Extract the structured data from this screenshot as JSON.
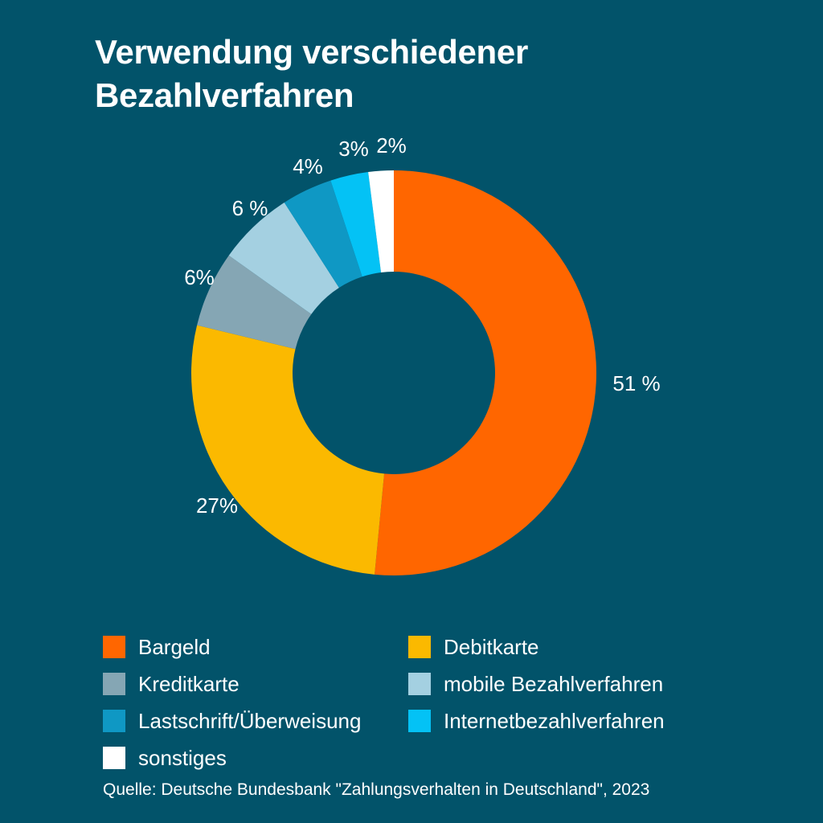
{
  "title": {
    "line1": "Verwendung verschiedener",
    "line2": "Bezahlverfahren"
  },
  "chart_data": {
    "type": "pie",
    "variant": "donut",
    "categories": [
      "Bargeld",
      "Debitkarte",
      "Kreditkarte",
      "mobile Bezahlverfahren",
      "Lastschrift/Überweisung",
      "Internetbezahlverfahren",
      "sonstiges"
    ],
    "values": [
      51,
      27,
      6,
      6,
      4,
      3,
      2
    ],
    "labels": [
      "51 %",
      "27%",
      "6%",
      "6 %",
      "4%",
      "3%",
      "2%"
    ],
    "colors": [
      "#ff6600",
      "#fbb900",
      "#85a6b4",
      "#a4d0e1",
      "#0f98c4",
      "#04c2f5",
      "#ffffff"
    ],
    "legend_position": "bottom"
  },
  "legend": [
    {
      "label": "Bargeld",
      "color": "#ff6600"
    },
    {
      "label": "Debitkarte",
      "color": "#fbb900"
    },
    {
      "label": "Kreditkarte",
      "color": "#85a6b4"
    },
    {
      "label": "mobile Bezahlverfahren",
      "color": "#a4d0e1"
    },
    {
      "label": "Lastschrift/Überweisung",
      "color": "#0f98c4"
    },
    {
      "label": "Internetbezahlverfahren",
      "color": "#04c2f5"
    },
    {
      "label": "sonstiges",
      "color": "#ffffff"
    }
  ],
  "source": "Quelle: Deutsche Bundesbank \"Zahlungsverhalten in Deutschland\", 2023"
}
